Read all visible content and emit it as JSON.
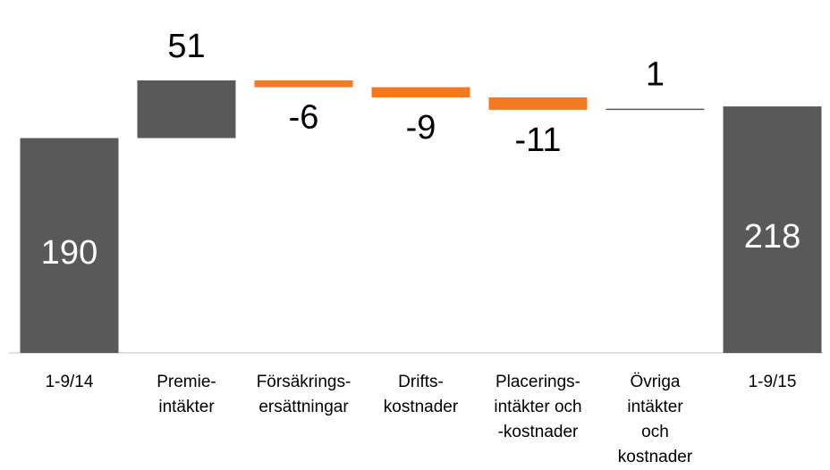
{
  "chart_data": {
    "type": "waterfall",
    "categories": [
      "1-9/14",
      "Premie-\nintäkter",
      "Försäkrings-\nersättningar",
      "Drifts-\nkostnader",
      "Placerings-\nintäkter och\n-kostnader",
      "Övriga\nintäkter\noch\nkostnader",
      "1-9/15"
    ],
    "values": [
      190,
      51,
      -6,
      -9,
      -11,
      1,
      218
    ],
    "measures": [
      "total",
      "relative",
      "relative",
      "relative",
      "relative",
      "relative",
      "total"
    ],
    "total_color": "#595959",
    "increase_color": "#595959",
    "decrease_color": "#f47920"
  }
}
